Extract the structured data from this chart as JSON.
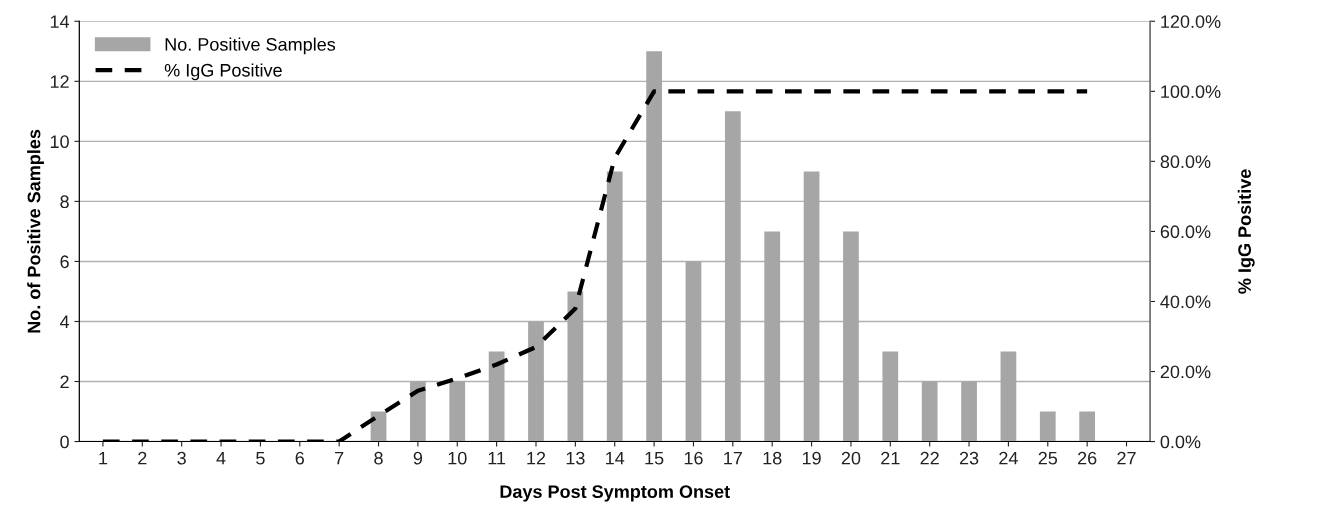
{
  "chart_data": {
    "type": "bar",
    "xlabel": "Days Post Symptom Onset",
    "ylabel": "No. of Positive Samples",
    "y2label": "% IgG Positive",
    "categories": [
      "1",
      "2",
      "3",
      "4",
      "5",
      "6",
      "7",
      "8",
      "9",
      "10",
      "11",
      "12",
      "13",
      "14",
      "15",
      "16",
      "17",
      "18",
      "19",
      "20",
      "21",
      "22",
      "23",
      "24",
      "25",
      "26",
      "27"
    ],
    "series": [
      {
        "name": "No. Positive Samples",
        "color": "#a6a6a6",
        "values": [
          0,
          0,
          0,
          0,
          0,
          0,
          0,
          1,
          2,
          2,
          3,
          4,
          5,
          9,
          13,
          6,
          11,
          7,
          9,
          7,
          3,
          2,
          2,
          3,
          1,
          1,
          0
        ]
      },
      {
        "name": "% IgG Positive",
        "type": "line",
        "axis": "y2",
        "color": "#000000",
        "line_style": "dashed",
        "marker": "none",
        "values": [
          0,
          0,
          0,
          0,
          0,
          0,
          0,
          7.4,
          14.5,
          18,
          22,
          27,
          38,
          81,
          100,
          100,
          100,
          100,
          100,
          100,
          100,
          100,
          100,
          100,
          100,
          100,
          null
        ]
      }
    ],
    "ylim": [
      0,
      14
    ],
    "yticks": [
      0,
      2,
      4,
      6,
      8,
      10,
      12,
      14
    ],
    "y2lim": [
      0,
      120
    ],
    "y2ticks": [
      {
        "value": 0,
        "label": "0.0%"
      },
      {
        "value": 20,
        "label": "20.0%"
      },
      {
        "value": 40,
        "label": "40.0%"
      },
      {
        "value": 60,
        "label": "60.0%"
      },
      {
        "value": 80,
        "label": "80.0%"
      },
      {
        "value": 100,
        "label": "100.0%"
      },
      {
        "value": 120,
        "label": "120.0%"
      }
    ],
    "grid": "y",
    "legend": "top left"
  }
}
